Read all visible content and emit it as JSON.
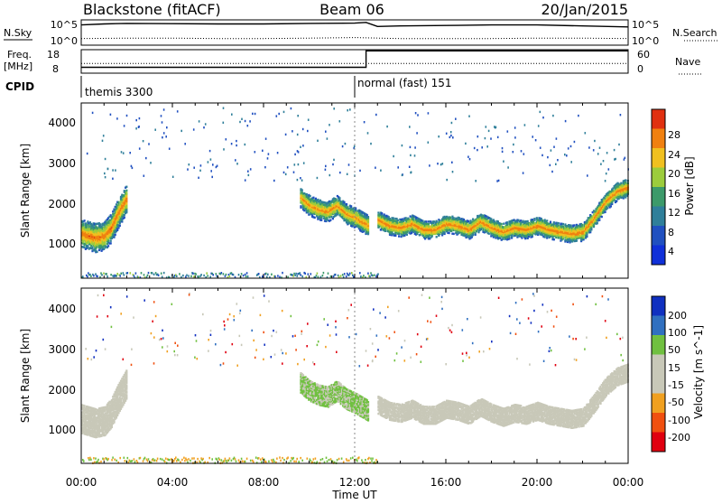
{
  "header": {
    "station": "Blackstone (fitACF)",
    "beam": "Beam 06",
    "date": "20/Jan/2015"
  },
  "noise_panel": {
    "left_label": "N.Sky",
    "right_label": "N.Search",
    "left_ticks": [
      "10^5",
      "10^0"
    ],
    "right_ticks": [
      "10^5",
      "10^0"
    ]
  },
  "freq_panel": {
    "left_label_line1": "Freq.",
    "left_label_line2": "[MHz]",
    "left_ticks": [
      "18",
      "8"
    ],
    "right_label": "Nave",
    "right_ticks": [
      "60",
      "0"
    ]
  },
  "cpid_panel": {
    "label": "CPID",
    "modes": [
      {
        "name": "themis 3300",
        "start_hour": 0.0
      },
      {
        "name": "normal (fast) 151",
        "start_hour": 12.0
      }
    ]
  },
  "time_axis": {
    "label": "Time UT",
    "ticks": [
      "00:00",
      "04:00",
      "08:00",
      "12:00",
      "16:00",
      "20:00",
      "00:00"
    ]
  },
  "power_panel": {
    "ylabel": "Slant Range [km]",
    "yticks": [
      "1000",
      "2000",
      "3000",
      "4000"
    ],
    "colorbar_label": "Power [dB]",
    "colorbar_ticks": [
      "4",
      "8",
      "12",
      "16",
      "20",
      "24",
      "28"
    ]
  },
  "velocity_panel": {
    "ylabel": "Slant Range [km]",
    "yticks": [
      "1000",
      "2000",
      "3000",
      "4000"
    ],
    "colorbar_label": "Velocity [m s^-1]",
    "colorbar_ticks": [
      "200",
      "100",
      "50",
      "15",
      "-15",
      "-50",
      "-100",
      "-200"
    ]
  },
  "chart_data": [
    {
      "type": "line",
      "panel": "noise",
      "x_unit": "hours UT",
      "series": [
        {
          "name": "N.Sky",
          "x": [
            0,
            1,
            2,
            4,
            6,
            8,
            10,
            12,
            12.5,
            13,
            14,
            16,
            18,
            20,
            22,
            24
          ],
          "log10_values": [
            4.0,
            4.2,
            4.3,
            4.25,
            4.2,
            4.2,
            4.3,
            4.35,
            4.5,
            3.7,
            3.8,
            3.9,
            4.0,
            4.0,
            3.8,
            3.6
          ]
        },
        {
          "name": "N.Search",
          "x": [
            0,
            2,
            4,
            6,
            8,
            10,
            12,
            14,
            16,
            18,
            20,
            22,
            24
          ],
          "log10_values": [
            1.3,
            1.4,
            1.4,
            1.3,
            1.3,
            1.4,
            1.5,
            1.3,
            1.3,
            1.3,
            1.4,
            1.4,
            1.3
          ]
        }
      ]
    },
    {
      "type": "line",
      "panel": "frequency",
      "x_unit": "hours UT",
      "series": [
        {
          "name": "Freq.",
          "x": [
            0,
            12.5,
            12.5,
            24
          ],
          "values": [
            10.5,
            10.5,
            17.5,
            17.5
          ]
        },
        {
          "name": "Nave",
          "x": [
            0,
            24
          ],
          "values": [
            25,
            25
          ]
        }
      ]
    },
    {
      "type": "heatmap",
      "panel": "power",
      "x_unit": "hours UT",
      "y_unit": "slant range km",
      "xlim": [
        0,
        24
      ],
      "ylim": [
        180,
        4500
      ],
      "clim_db": [
        0,
        30
      ],
      "bands": [
        {
          "x": [
            0.0,
            0.3,
            0.6,
            1.0,
            1.3,
            1.6,
            2.0
          ],
          "y": [
            1300,
            1250,
            1200,
            1250,
            1450,
            1800,
            2200
          ],
          "width_km": 350,
          "peak_db": 26
        },
        {
          "x": [
            9.6,
            10.0,
            10.4,
            10.8,
            11.2,
            11.6,
            12.0,
            12.3,
            12.6
          ],
          "y": [
            2200,
            2000,
            1900,
            1850,
            2000,
            1800,
            1700,
            1600,
            1500
          ],
          "width_km": 250,
          "peak_db": 24
        },
        {
          "x": [
            13.0,
            13.5,
            14.0,
            14.5,
            15.0,
            15.5,
            16.0,
            16.5,
            17.0,
            17.5,
            18.0,
            18.5,
            19.0,
            19.5,
            20.0,
            20.5,
            21.0,
            21.5,
            22.0,
            22.5,
            23.0,
            23.5,
            24.0
          ],
          "y": [
            1650,
            1500,
            1450,
            1550,
            1400,
            1400,
            1550,
            1500,
            1400,
            1600,
            1450,
            1350,
            1450,
            1400,
            1500,
            1400,
            1350,
            1300,
            1350,
            1700,
            2100,
            2350,
            2450
          ],
          "width_km": 220,
          "peak_db": 25
        }
      ],
      "near_range_band": {
        "x_start": 0.0,
        "x_end": 13.0,
        "y": 280,
        "width_km": 120,
        "peak_db": 10
      }
    },
    {
      "type": "heatmap",
      "panel": "velocity",
      "x_unit": "hours UT",
      "y_unit": "slant range km",
      "xlim": [
        0,
        24
      ],
      "ylim": [
        180,
        4500
      ],
      "clim_ms": [
        -200,
        200
      ],
      "regions": [
        {
          "x": [
            0.2,
            1.0,
            2.0
          ],
          "y": [
            1400,
            1500,
            2000
          ],
          "velocity_ms": 0
        },
        {
          "x": [
            9.5,
            10.5,
            11.5,
            12.5
          ],
          "y": [
            2200,
            1900,
            1800,
            1500
          ],
          "velocity_ms": 40
        },
        {
          "x": [
            13.0,
            16.0,
            20.0,
            22.5,
            24.0
          ],
          "y": [
            1700,
            1750,
            1650,
            1750,
            2400
          ],
          "velocity_ms": 0
        }
      ],
      "near_range_band": {
        "x_start": 0.0,
        "x_end": 13.0,
        "y": 280,
        "velocity_ms": -60
      }
    }
  ]
}
